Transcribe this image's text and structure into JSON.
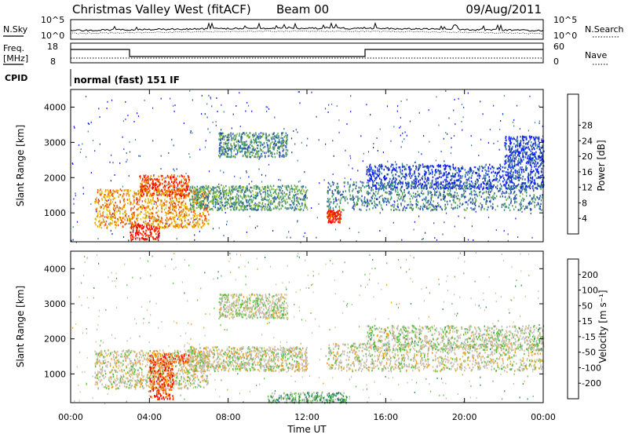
{
  "header": {
    "title": "Christmas Valley West (fitACF)",
    "beam": "Beam 00",
    "date": "09/Aug/2011"
  },
  "top_panels": {
    "nsky_label": "N.Sky",
    "nsearch_label": "N.Search",
    "nsky_ticks": [
      "10^5",
      "10^0"
    ],
    "nsearch_ticks": [
      "10^5",
      "10^0"
    ],
    "freq_label": "Freq.",
    "freq_unit": "[MHz]",
    "freq_ticks": [
      "18",
      "8"
    ],
    "nave_label": "Nave",
    "nave_ticks": [
      "60",
      "0"
    ],
    "cpid_label": "CPID",
    "cpid_value": "normal (fast) 151 IF"
  },
  "chart_data": [
    {
      "type": "heatmap",
      "panel": "power",
      "ylabel": "Slant Range [km]",
      "ylim": [
        180,
        4500
      ],
      "yticks": [
        1000,
        2000,
        3000,
        4000
      ],
      "xlim_hours": [
        0,
        24
      ],
      "colorbar": {
        "label": "Power [dB]",
        "ticks": [
          "4",
          "8",
          "12",
          "16",
          "20",
          "24",
          "28"
        ],
        "colors": [
          "#0a1bff",
          "#2a4db4",
          "#3c8a8a",
          "#5aa45a",
          "#9ac83a",
          "#e8c000",
          "#f09000",
          "#f05000",
          "#ff0000"
        ]
      },
      "regions": [
        {
          "t": [
            1.2,
            7.0
          ],
          "r": [
            600,
            1700
          ],
          "level": 0.72
        },
        {
          "t": [
            3.0,
            4.5
          ],
          "r": [
            250,
            700
          ],
          "level": 0.95
        },
        {
          "t": [
            3.5,
            6.0
          ],
          "r": [
            1500,
            2100
          ],
          "level": 0.85
        },
        {
          "t": [
            6.0,
            12.0
          ],
          "r": [
            1100,
            1800
          ],
          "level": 0.35
        },
        {
          "t": [
            7.5,
            11.0
          ],
          "r": [
            2600,
            3300
          ],
          "level": 0.3
        },
        {
          "t": [
            13.0,
            13.7
          ],
          "r": [
            750,
            1100
          ],
          "level": 0.9
        },
        {
          "t": [
            13.0,
            24.0
          ],
          "r": [
            1100,
            1900
          ],
          "level": 0.28
        },
        {
          "t": [
            15.0,
            24.0
          ],
          "r": [
            1700,
            2400
          ],
          "level": 0.12
        },
        {
          "t": [
            22.0,
            24.0
          ],
          "r": [
            2400,
            3200
          ],
          "level": 0.12
        }
      ]
    },
    {
      "type": "heatmap",
      "panel": "velocity",
      "ylabel": "Slant Range [km]",
      "xlabel": "Time UT",
      "ylim": [
        180,
        4500
      ],
      "yticks": [
        1000,
        2000,
        3000,
        4000
      ],
      "xlim_hours": [
        0,
        24
      ],
      "xticks": [
        "00:00",
        "04:00",
        "08:00",
        "12:00",
        "16:00",
        "20:00",
        "00:00"
      ],
      "colorbar": {
        "label": "Velocity [m s⁻¹]",
        "ticks": [
          "-200",
          "-100",
          "-50",
          "-15",
          "15",
          "50",
          "100",
          "200"
        ],
        "colors": [
          "#ff0000",
          "#ff6000",
          "#f0a020",
          "#d9c090",
          "#bbbbbb",
          "#58c040",
          "#2a8a5a",
          "#2a5aa0",
          "#1a1ac0"
        ]
      },
      "regions": [
        {
          "t": [
            1.2,
            7.0
          ],
          "r": [
            600,
            1700
          ],
          "level": 0.45
        },
        {
          "t": [
            4.0,
            5.2
          ],
          "r": [
            300,
            1400
          ],
          "level": 0.15
        },
        {
          "t": [
            4.0,
            6.0
          ],
          "r": [
            1300,
            1600
          ],
          "level": 0.2
        },
        {
          "t": [
            6.0,
            12.0
          ],
          "r": [
            1100,
            1800
          ],
          "level": 0.45
        },
        {
          "t": [
            7.5,
            11.0
          ],
          "r": [
            2600,
            3300
          ],
          "level": 0.48
        },
        {
          "t": [
            13.0,
            24.0
          ],
          "r": [
            1100,
            1900
          ],
          "level": 0.45
        },
        {
          "t": [
            15.0,
            24.0
          ],
          "r": [
            1700,
            2400
          ],
          "level": 0.5
        },
        {
          "t": [
            10.0,
            14.0
          ],
          "r": [
            200,
            500
          ],
          "level": 0.62
        }
      ]
    }
  ]
}
